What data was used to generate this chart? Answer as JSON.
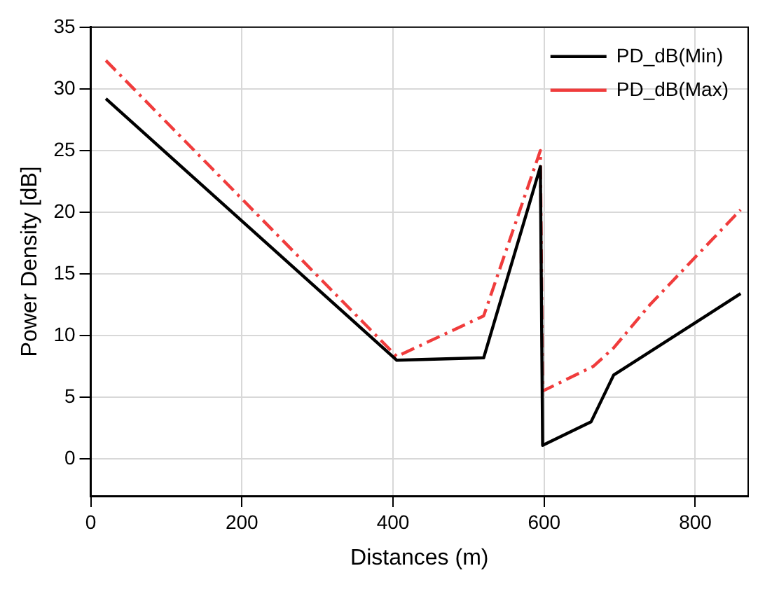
{
  "chart_data": {
    "type": "line",
    "xlabel": "Distances (m)",
    "ylabel": "Power Density [dB]",
    "xlim": [
      0,
      870
    ],
    "xticks": [
      0,
      200,
      400,
      600,
      800
    ],
    "ylim": [
      -3,
      35
    ],
    "yticks": [
      0,
      5,
      10,
      15,
      20,
      25,
      30,
      35
    ],
    "grid": true,
    "legend": "top right",
    "marker": "none",
    "series": [
      {
        "name": "PD_dB(Min)",
        "color": "#000000",
        "line_style": "solid",
        "x": [
          20,
          405,
          520,
          595,
          598,
          662,
          692,
          860
        ],
        "values": [
          29.2,
          8,
          8.2,
          23.7,
          1.1,
          3,
          6.8,
          13.4
        ]
      },
      {
        "name": "PD_dB(Max)",
        "color": "#f03c3c",
        "line_style": "dashed",
        "x": [
          20,
          405,
          520,
          595,
          598,
          665,
          692,
          740,
          860
        ],
        "values": [
          32.3,
          8.3,
          11.6,
          25,
          5.5,
          7.5,
          9,
          12.5,
          20.2
        ]
      }
    ]
  }
}
